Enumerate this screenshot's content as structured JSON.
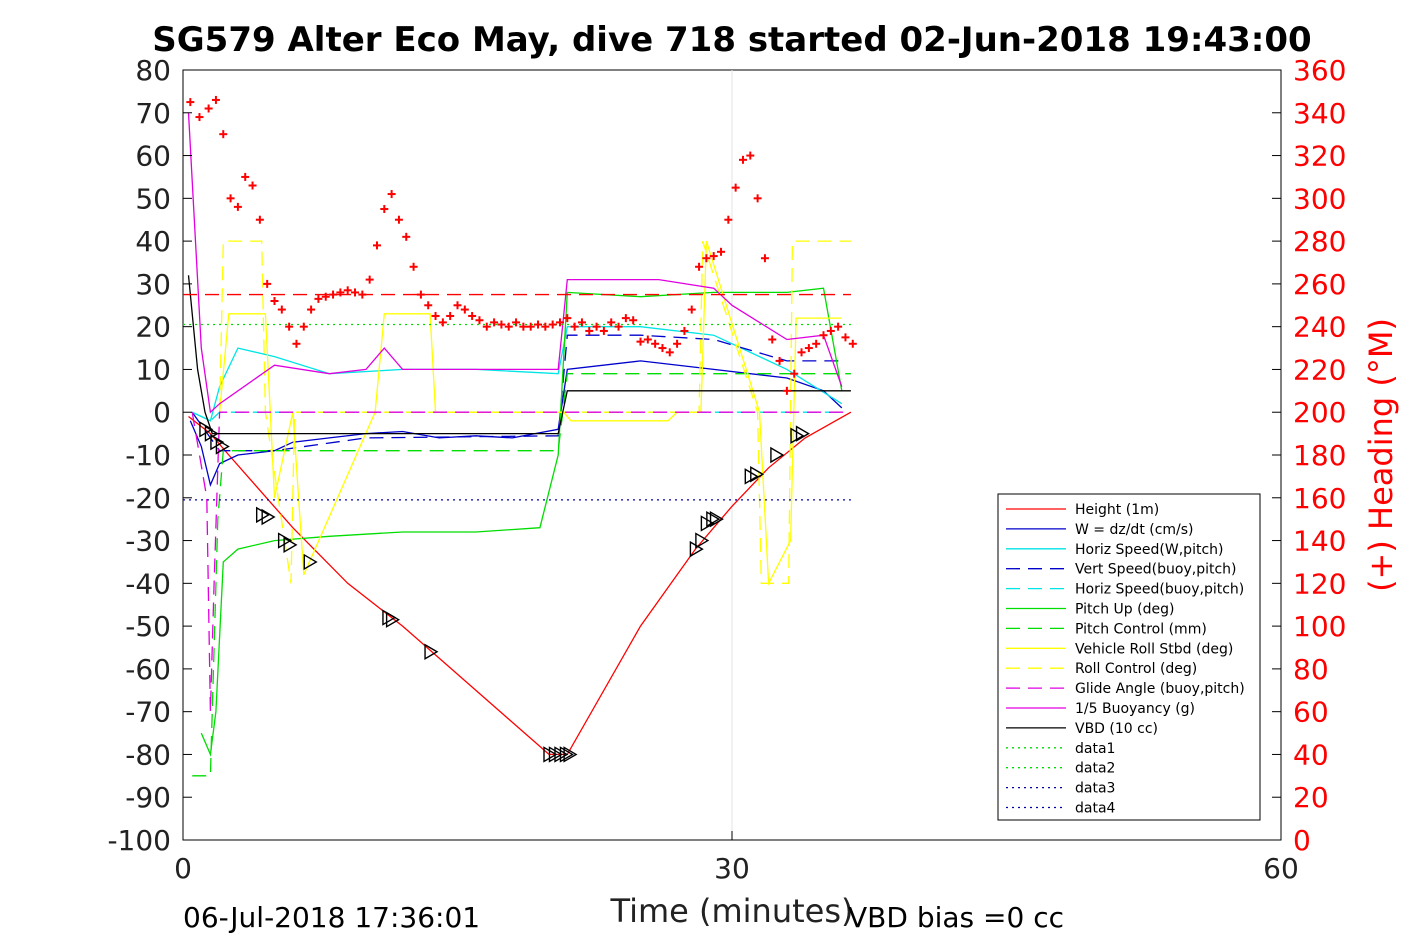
{
  "chart_data": {
    "type": "line",
    "title": "SG579 Alter Eco May, dive 718 started 02-Jun-2018 19:43:00",
    "xlabel": "Time (minutes)",
    "ylabel_right": "(+) Heading (°M)",
    "xlim": [
      0,
      60
    ],
    "ylim": [
      -100,
      80
    ],
    "ylim_right": [
      0,
      360
    ],
    "x_ticks": [
      0,
      30,
      60
    ],
    "y_ticks": [
      -100,
      -90,
      -80,
      -70,
      -60,
      -50,
      -40,
      -30,
      -20,
      -10,
      0,
      10,
      20,
      30,
      40,
      50,
      60,
      70,
      80
    ],
    "y_right_ticks": [
      0,
      20,
      40,
      60,
      80,
      100,
      120,
      140,
      160,
      180,
      200,
      220,
      240,
      260,
      280,
      300,
      320,
      340,
      360
    ],
    "grid": "x=30 only",
    "legend_position": "bottom-right",
    "footer_left": "06-Jul-2018 17:36:01",
    "footer_right": "VBD bias =0 cc",
    "colors": {
      "height": "#ff0000",
      "w": "#0000cc",
      "horiz_speed": "#00e5e5",
      "vert_speed_buoy": "#0000cc",
      "horiz_speed_buoy": "#00e5e5",
      "pitch": "#00dd00",
      "pitch_control": "#00dd00",
      "roll": "#ffff00",
      "roll_control": "#ffff00",
      "glide": "#e000e0",
      "buoyancy": "#e000e0",
      "vbd": "#000000",
      "heading": "#ff0000",
      "right_axis": "#ff0000"
    },
    "legend": [
      {
        "label": "Height (1m)",
        "color": "#ff0000",
        "style": "solid"
      },
      {
        "label": "W = dz/dt (cm/s)",
        "color": "#0000cc",
        "style": "solid"
      },
      {
        "label": "Horiz Speed(W,pitch)",
        "color": "#00e5e5",
        "style": "solid"
      },
      {
        "label": "Vert Speed(buoy,pitch)",
        "color": "#0000cc",
        "style": "dashed"
      },
      {
        "label": "Horiz Speed(buoy,pitch)",
        "color": "#00e5e5",
        "style": "dashed"
      },
      {
        "label": "Pitch Up (deg)",
        "color": "#00dd00",
        "style": "solid"
      },
      {
        "label": "Pitch Control (mm)",
        "color": "#00dd00",
        "style": "dashed"
      },
      {
        "label": "Vehicle Roll Stbd (deg)",
        "color": "#ffff00",
        "style": "solid"
      },
      {
        "label": "Roll Control (deg)",
        "color": "#ffff00",
        "style": "dashed"
      },
      {
        "label": "Glide Angle (buoy,pitch)",
        "color": "#e000e0",
        "style": "dashed"
      },
      {
        "label": "1/5 Buoyancy (g)",
        "color": "#e000e0",
        "style": "solid"
      },
      {
        "label": "VBD (10 cc)",
        "color": "#000000",
        "style": "solid"
      },
      {
        "label": "data1",
        "color": "#00dd00",
        "style": "dotted"
      },
      {
        "label": "data2",
        "color": "#00dd00",
        "style": "dotted"
      },
      {
        "label": "data3",
        "color": "#0000aa",
        "style": "dotted"
      },
      {
        "label": "data4",
        "color": "#0000aa",
        "style": "dotted"
      }
    ],
    "series": [
      {
        "name": "Height (1m)",
        "x": [
          0.3,
          1.5,
          2.5,
          6,
          9,
          12,
          20,
          21,
          25,
          28,
          30,
          32,
          34,
          36.5
        ],
        "y": [
          -1,
          -5,
          -10,
          -27,
          -40,
          -50,
          -80,
          -80,
          -50,
          -32,
          -22,
          -13,
          -6,
          0
        ]
      },
      {
        "name": "W = dz/dt (cm/s)",
        "x": [
          0.4,
          1.0,
          1.5,
          2.0,
          3,
          5,
          6,
          8,
          10,
          12,
          14,
          16,
          18,
          20.5,
          21,
          25,
          29,
          33,
          35,
          36
        ],
        "y": [
          -2,
          -8,
          -17,
          -12,
          -10,
          -9,
          -7,
          -6,
          -5,
          -4.5,
          -6,
          -5.5,
          -6,
          -4,
          10,
          12,
          10,
          8,
          5,
          1
        ]
      },
      {
        "name": "Horiz Speed(W,pitch)",
        "x": [
          0.5,
          1.5,
          2.0,
          3,
          5,
          8,
          12,
          16,
          20.5,
          21,
          25,
          29,
          33,
          36
        ],
        "y": [
          0,
          -2,
          6,
          15,
          13,
          9,
          10,
          10,
          9,
          20,
          20,
          18,
          10,
          2
        ]
      },
      {
        "name": "Vert Speed(buoy,pitch)",
        "x": [
          0.5,
          1.5,
          2,
          5,
          10,
          20.5,
          21,
          25,
          29,
          33,
          36
        ],
        "y": [
          0,
          -6,
          -9,
          -9,
          -6,
          -5.5,
          18,
          18,
          17,
          12,
          12
        ]
      },
      {
        "name": "Horiz Speed(buoy,pitch)",
        "x": [
          0.5,
          1.5,
          2,
          5,
          10,
          20.5,
          21,
          25,
          30,
          33,
          36
        ],
        "y": [
          0,
          -2,
          0,
          0,
          0,
          0,
          0,
          0,
          0,
          0,
          0
        ]
      },
      {
        "name": "Pitch Up (deg)",
        "x": [
          1.0,
          1.5,
          1.8,
          2.2,
          3,
          5,
          8,
          12,
          16,
          19.5,
          20.5,
          21,
          25,
          29,
          33,
          35,
          36
        ],
        "y": [
          -75,
          -80,
          -70,
          -35,
          -32,
          -30,
          -29,
          -28,
          -28,
          -27,
          -10,
          28,
          27,
          28,
          28,
          29,
          5
        ]
      },
      {
        "name": "Pitch Control (mm)",
        "x": [
          0.5,
          1.2,
          1.5,
          1.9,
          2.2,
          20.5,
          21,
          36.5
        ],
        "y": [
          -85,
          -85,
          -85,
          -25,
          -9,
          -9,
          9,
          9
        ]
      },
      {
        "name": "Vehicle Roll Stbd (deg)",
        "x": [
          2.0,
          2.5,
          4.5,
          5.0,
          6.0,
          6.6,
          10.5,
          11.0,
          13.5,
          13.8,
          20.8,
          21.2,
          26.5,
          27.0,
          28.3,
          28.6,
          31.5,
          32,
          33.2,
          33.5,
          36
        ],
        "y": [
          0,
          23,
          23,
          -20,
          0,
          -38,
          0,
          23,
          23,
          0,
          0,
          -2,
          -2,
          0,
          0,
          40,
          0,
          -40,
          -30,
          22,
          22
        ]
      },
      {
        "name": "Roll Control (deg)",
        "x": [
          2.0,
          2.2,
          4.3,
          4.5,
          5.9,
          6.1,
          20.8,
          21.0,
          28.2,
          28.4,
          31.4,
          31.6,
          33.1,
          33.3,
          36.5
        ],
        "y": [
          0,
          40,
          40,
          0,
          -40,
          0,
          0,
          0,
          0,
          40,
          0,
          -40,
          -40,
          40,
          40
        ]
      },
      {
        "name": "Glide Angle (buoy,pitch)",
        "x": [
          0.5,
          1.3,
          1.5,
          1.7,
          2.0,
          20.5,
          21,
          36.5
        ],
        "y": [
          0,
          -20,
          -70,
          -40,
          0,
          0,
          0,
          0
        ]
      },
      {
        "name": "1/5 Buoyancy (g)",
        "x": [
          0.3,
          1.0,
          1.5,
          2,
          5,
          8,
          10,
          11,
          12,
          20.5,
          21,
          26,
          29,
          30,
          33,
          35,
          36
        ],
        "y": [
          70,
          15,
          0,
          2,
          11,
          9,
          10,
          15,
          10,
          10,
          31,
          31,
          29,
          25,
          17,
          18,
          6
        ]
      },
      {
        "name": "VBD (10 cc)",
        "x": [
          0.3,
          0.8,
          1.2,
          1.6,
          20.5,
          21,
          36.5
        ],
        "y": [
          32,
          10,
          0,
          -5,
          -5,
          5,
          5
        ]
      },
      {
        "name": "data2",
        "x": [
          0,
          36.5
        ],
        "y": [
          20.5,
          20.5
        ]
      },
      {
        "name": "data4",
        "x": [
          0,
          36.5
        ],
        "y": [
          -20.5,
          -20.5
        ]
      }
    ],
    "heading": {
      "x": [
        0.4,
        0.9,
        1.4,
        1.8,
        2.2,
        2.6,
        3.0,
        3.4,
        3.8,
        4.2,
        4.6,
        5.0,
        5.4,
        5.8,
        6.2,
        6.6,
        7.0,
        7.4,
        7.8,
        8.2,
        8.6,
        9.0,
        9.4,
        9.8,
        10.2,
        10.6,
        11.0,
        11.4,
        11.8,
        12.2,
        12.6,
        13.0,
        13.4,
        13.8,
        14.2,
        14.6,
        15.0,
        15.4,
        15.8,
        16.2,
        16.6,
        17.0,
        17.4,
        17.8,
        18.2,
        18.6,
        19.0,
        19.4,
        19.8,
        20.2,
        20.6,
        21.0,
        21.4,
        21.8,
        22.2,
        22.6,
        23.0,
        23.4,
        23.8,
        24.2,
        24.6,
        25.0,
        25.4,
        25.8,
        26.2,
        26.6,
        27.0,
        27.4,
        27.8,
        28.2,
        28.6,
        29.0,
        29.4,
        29.8,
        30.2,
        30.6,
        31.0,
        31.4,
        31.8,
        32.2,
        32.6,
        33.0,
        33.4,
        33.8,
        34.2,
        34.6,
        35.0,
        35.4,
        35.8,
        36.2,
        36.6
      ],
      "y": [
        345,
        338,
        342,
        346,
        330,
        300,
        296,
        310,
        306,
        290,
        260,
        252,
        248,
        240,
        232,
        240,
        248,
        253,
        254,
        255,
        256,
        257,
        256,
        255,
        262,
        278,
        295,
        302,
        290,
        282,
        268,
        255,
        250,
        245,
        242,
        245,
        250,
        248,
        245,
        243,
        240,
        242,
        241,
        240,
        242,
        240,
        240,
        241,
        240,
        241,
        242,
        244,
        240,
        242,
        238,
        240,
        238,
        242,
        240,
        244,
        243,
        233,
        234,
        232,
        230,
        228,
        232,
        238,
        248,
        268,
        272,
        273,
        275,
        290,
        305,
        318,
        320,
        300,
        272,
        234,
        224,
        210,
        218,
        228,
        230,
        232,
        236,
        238,
        240,
        235,
        232
      ]
    },
    "markers": {
      "x": [
        1.2,
        1.5,
        1.8,
        2.1,
        4.3,
        4.6,
        5.5,
        5.8,
        6.9,
        11.2,
        11.4,
        13.5,
        20.0,
        20.3,
        20.6,
        20.9,
        21.1,
        28.0,
        28.3,
        28.6,
        28.9,
        29.1,
        31.0,
        31.3,
        32.4,
        33.5,
        33.8
      ],
      "y": [
        -4,
        -5,
        -7,
        -8,
        -24,
        -24.5,
        -30,
        -31,
        -35,
        -48,
        -48.5,
        -56,
        -80,
        -80,
        -80,
        -80,
        -80,
        -32,
        -30,
        -26,
        -25,
        -25,
        -15,
        -14.5,
        -10,
        -5.5,
        -5
      ]
    }
  }
}
